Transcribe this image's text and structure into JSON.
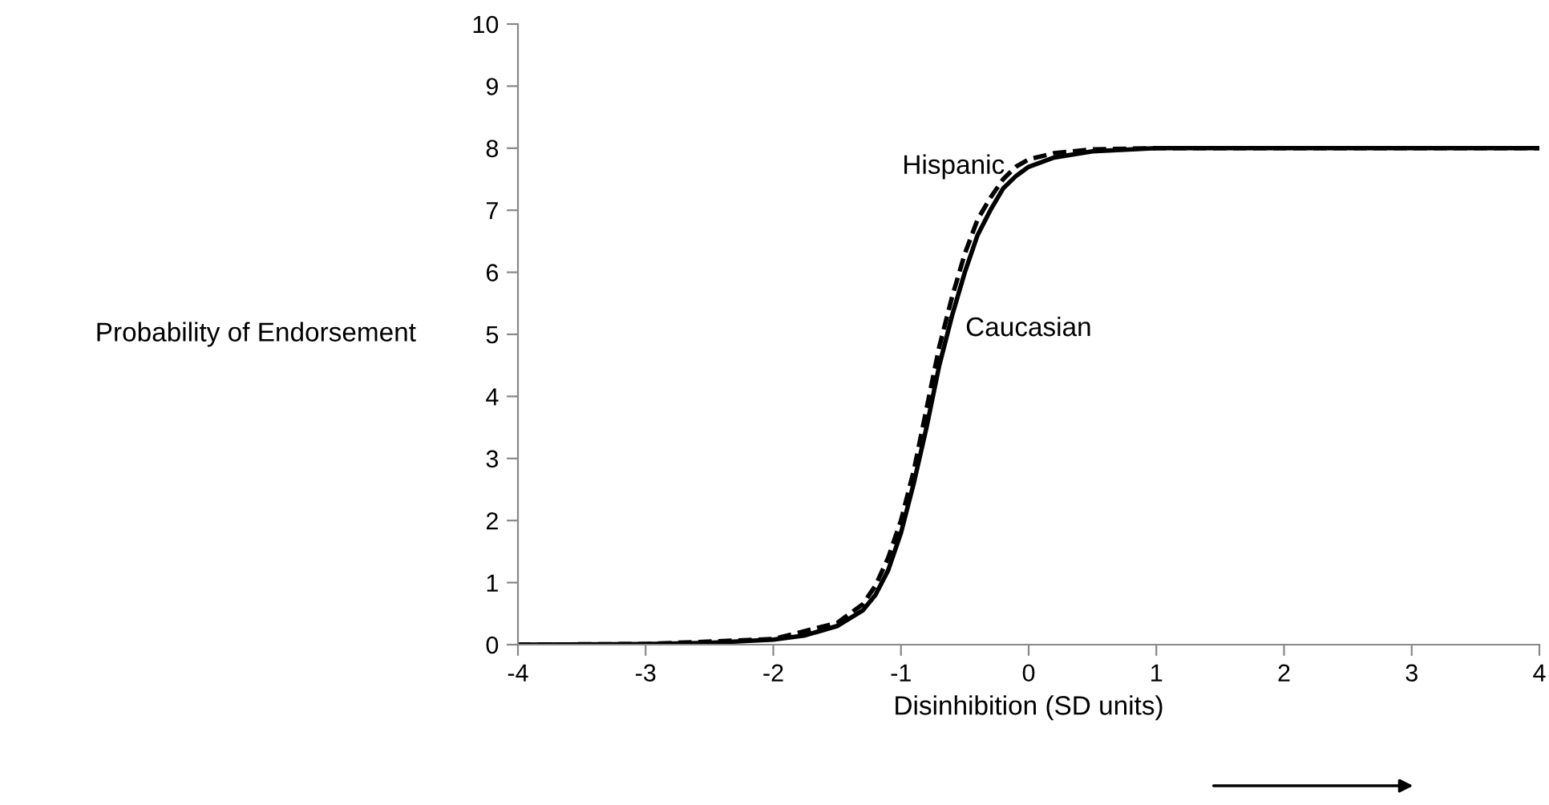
{
  "chart_data": {
    "type": "line",
    "xlabel": "Disinhibition (SD units)",
    "ylabel": "Probability of Endorsement",
    "xlim": [
      -4,
      4
    ],
    "xticks": [
      -4,
      -3,
      -2,
      -1,
      0,
      1,
      2,
      3,
      4
    ],
    "ylim": [
      0,
      10
    ],
    "yticks": [
      0,
      1,
      2,
      3,
      4,
      5,
      6,
      7,
      8,
      9,
      10
    ],
    "grid": false,
    "legend": false,
    "series": [
      {
        "name": "Hispanic",
        "color": "#000000",
        "line_style": "dashed",
        "x": [
          -4,
          -3,
          -2,
          -1.5,
          -1.3,
          -1.2,
          -1.1,
          -1.0,
          -0.9,
          -0.8,
          -0.7,
          -0.6,
          -0.5,
          -0.4,
          -0.3,
          -0.2,
          -0.1,
          0,
          0.2,
          0.5,
          1,
          2,
          3,
          4
        ],
        "values": [
          0,
          0.01,
          0.09,
          0.35,
          0.65,
          0.95,
          1.4,
          2.0,
          2.8,
          3.8,
          4.8,
          5.6,
          6.3,
          6.85,
          7.2,
          7.5,
          7.7,
          7.82,
          7.92,
          7.98,
          8,
          8,
          8,
          8
        ]
      },
      {
        "name": "Caucasian",
        "color": "#000000",
        "line_style": "solid",
        "x": [
          -4,
          -3,
          -2.5,
          -2,
          -1.75,
          -1.5,
          -1.3,
          -1.2,
          -1.1,
          -1.0,
          -0.9,
          -0.8,
          -0.7,
          -0.6,
          -0.5,
          -0.4,
          -0.3,
          -0.2,
          -0.1,
          0,
          0.2,
          0.5,
          1,
          2,
          3,
          4
        ],
        "values": [
          0,
          0.01,
          0.03,
          0.08,
          0.15,
          0.3,
          0.55,
          0.8,
          1.2,
          1.8,
          2.6,
          3.5,
          4.5,
          5.3,
          6.0,
          6.6,
          7.0,
          7.35,
          7.55,
          7.7,
          7.85,
          7.95,
          8,
          8,
          8,
          8
        ]
      }
    ]
  }
}
